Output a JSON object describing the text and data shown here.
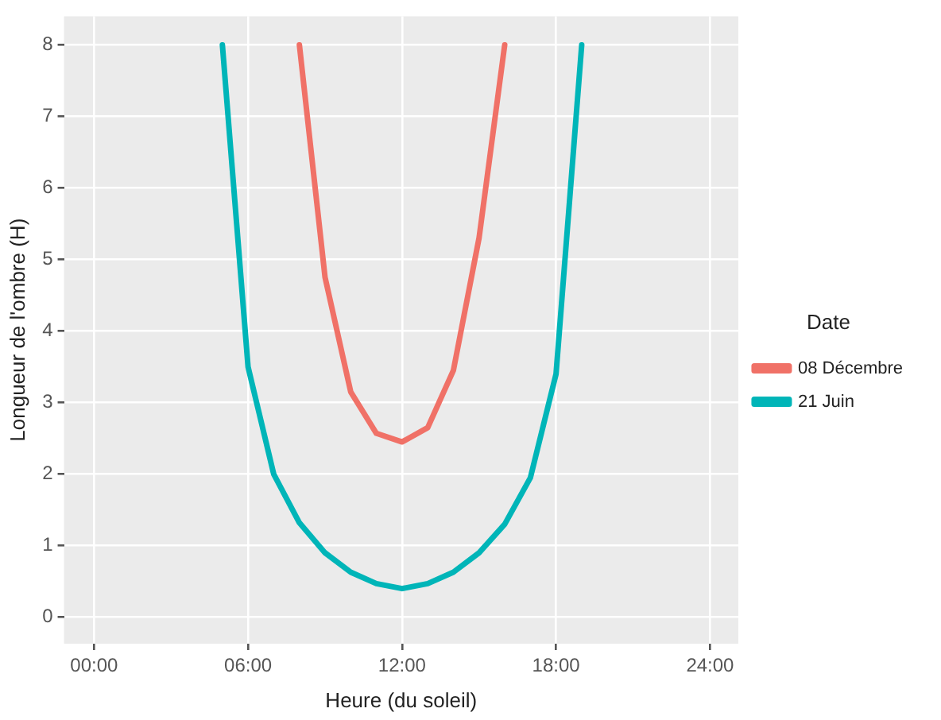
{
  "chart_data": {
    "type": "line",
    "xlabel": "Heure (du soleil)",
    "ylabel": "Longueur de l'ombre (H)",
    "legend_title": "Date",
    "legend": "right",
    "grid": true,
    "marker": "none",
    "line_style": "solid",
    "xlim": [
      -1.17,
      25.1
    ],
    "ylim": [
      -0.37,
      8.4
    ],
    "xticks": [
      {
        "value": 0,
        "label": "00:00"
      },
      {
        "value": 6,
        "label": "06:00"
      },
      {
        "value": 12,
        "label": "12:00"
      },
      {
        "value": 18,
        "label": "18:00"
      },
      {
        "value": 24,
        "label": "24:00"
      }
    ],
    "yticks": [
      0,
      1,
      2,
      3,
      4,
      5,
      6,
      7,
      8
    ],
    "series": [
      {
        "name": "08 Décembre",
        "color": "#f07167",
        "x": [
          8,
          9,
          10,
          11,
          12,
          13,
          14,
          15,
          16
        ],
        "values": [
          8,
          4.75,
          3.15,
          2.57,
          2.45,
          2.65,
          3.45,
          5.3,
          8
        ]
      },
      {
        "name": "21 Juin",
        "color": "#00b5b8",
        "x": [
          5,
          6,
          7,
          8,
          9,
          10,
          11,
          12,
          13,
          14,
          15,
          16,
          17,
          18,
          19
        ],
        "values": [
          8,
          3.5,
          2.0,
          1.32,
          0.9,
          0.63,
          0.47,
          0.4,
          0.47,
          0.63,
          0.9,
          1.3,
          1.95,
          3.4,
          8
        ]
      }
    ]
  }
}
